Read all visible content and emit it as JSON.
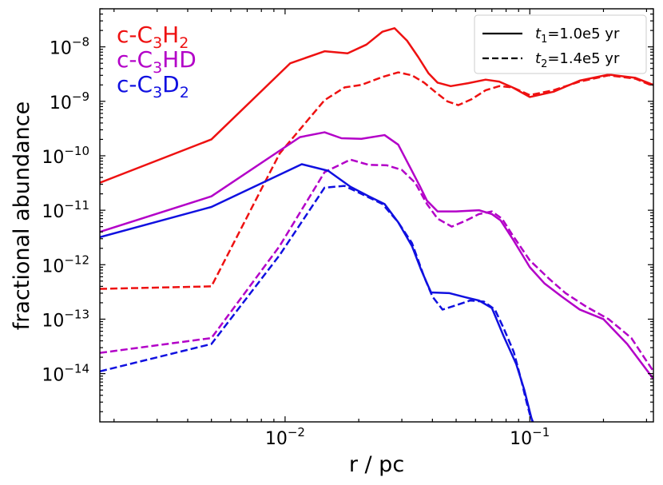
{
  "chart_data": {
    "type": "line",
    "xlabel": "r / pc",
    "ylabel": "fractional abundance",
    "xscale": "log",
    "yscale": "log",
    "xlim": [
      0.00175,
      0.32
    ],
    "ylim": [
      1.3e-15,
      5e-08
    ],
    "x_ticks": [
      {
        "value": 0.01,
        "base": "10",
        "exp": "−2"
      },
      {
        "value": 0.1,
        "base": "10",
        "exp": "−1"
      }
    ],
    "y_ticks": [
      {
        "value": 1e-14,
        "base": "10",
        "exp": "−14"
      },
      {
        "value": 1e-13,
        "base": "10",
        "exp": "−13"
      },
      {
        "value": 1e-12,
        "base": "10",
        "exp": "−12"
      },
      {
        "value": 1e-11,
        "base": "10",
        "exp": "−11"
      },
      {
        "value": 1e-10,
        "base": "10",
        "exp": "−10"
      },
      {
        "value": 1e-09,
        "base": "10",
        "exp": "−9"
      },
      {
        "value": 1e-08,
        "base": "10",
        "exp": "−8"
      }
    ],
    "species_labels": [
      {
        "prefix": "c-C",
        "sub1": "3",
        "mid": "H",
        "sub2": "2",
        "color": "#ee1111"
      },
      {
        "prefix": "c-C",
        "sub1": "3",
        "mid": "HD",
        "sub2": "",
        "color": "#b300c8"
      },
      {
        "prefix": "c-C",
        "sub1": "3",
        "mid": "D",
        "sub2": "2",
        "color": "#1010e0"
      }
    ],
    "legend": {
      "position": "top-right",
      "entries": [
        {
          "var": "t",
          "sub": "1",
          "text": "=1.0e5 yr",
          "dash": "solid"
        },
        {
          "var": "t",
          "sub": "2",
          "text": "=1.4e5 yr",
          "dash": "dashed"
        }
      ]
    },
    "series": [
      {
        "name": "c-C3H2 t1",
        "color": "#ee1111",
        "dash": "solid",
        "x": [
          0.00175,
          0.005,
          0.0105,
          0.0145,
          0.018,
          0.0215,
          0.025,
          0.028,
          0.0315,
          0.035,
          0.0385,
          0.042,
          0.0475,
          0.056,
          0.066,
          0.075,
          0.085,
          0.1,
          0.125,
          0.16,
          0.21,
          0.27,
          0.32
        ],
        "y": [
          3.2e-11,
          2e-10,
          5e-09,
          8.3e-09,
          7.6e-09,
          1.1e-08,
          1.9e-08,
          2.2e-08,
          1.3e-08,
          6.5e-09,
          3.3e-09,
          2.2e-09,
          1.9e-09,
          2.15e-09,
          2.5e-09,
          2.3e-09,
          1.8e-09,
          1.2e-09,
          1.5e-09,
          2.4e-09,
          3.1e-09,
          2.7e-09,
          2e-09
        ]
      },
      {
        "name": "c-C3H2 t2",
        "color": "#ee1111",
        "dash": "dashed",
        "x": [
          0.00175,
          0.005,
          0.0095,
          0.0145,
          0.0175,
          0.0205,
          0.025,
          0.029,
          0.033,
          0.037,
          0.041,
          0.046,
          0.051,
          0.058,
          0.066,
          0.075,
          0.085,
          0.1,
          0.125,
          0.16,
          0.21,
          0.27,
          0.32
        ],
        "y": [
          3.6e-13,
          4e-13,
          1.1e-10,
          1.05e-09,
          1.8e-09,
          2e-09,
          2.8e-09,
          3.4e-09,
          3e-09,
          2.2e-09,
          1.5e-09,
          1e-09,
          8.5e-10,
          1.1e-09,
          1.6e-09,
          1.9e-09,
          1.8e-09,
          1.3e-09,
          1.6e-09,
          2.3e-09,
          3e-09,
          2.6e-09,
          1.9e-09
        ]
      },
      {
        "name": "c-C3HD t1",
        "color": "#b300c8",
        "dash": "solid",
        "x": [
          0.00175,
          0.005,
          0.0115,
          0.0145,
          0.017,
          0.0205,
          0.0255,
          0.029,
          0.0325,
          0.0355,
          0.038,
          0.042,
          0.05,
          0.062,
          0.07,
          0.076,
          0.085,
          0.1,
          0.115,
          0.135,
          0.16,
          0.2,
          0.25,
          0.32
        ],
        "y": [
          4e-12,
          1.8e-11,
          2.2e-10,
          2.7e-10,
          2.1e-10,
          2.05e-10,
          2.4e-10,
          1.6e-10,
          6e-11,
          2.8e-11,
          1.5e-11,
          9.5e-12,
          9.5e-12,
          1e-11,
          8.5e-12,
          6.5e-12,
          3e-12,
          9e-13,
          4.5e-13,
          2.6e-13,
          1.5e-13,
          1e-13,
          3.5e-14,
          8e-15
        ]
      },
      {
        "name": "c-C3HD t2",
        "color": "#b300c8",
        "dash": "dashed",
        "x": [
          0.00175,
          0.005,
          0.0095,
          0.0145,
          0.0185,
          0.022,
          0.026,
          0.03,
          0.034,
          0.038,
          0.042,
          0.048,
          0.055,
          0.062,
          0.07,
          0.077,
          0.085,
          0.1,
          0.12,
          0.14,
          0.17,
          0.21,
          0.26,
          0.32
        ],
        "y": [
          2.4e-14,
          4.5e-14,
          2.2e-12,
          5e-11,
          8.5e-11,
          6.8e-11,
          6.7e-11,
          5.5e-11,
          3.2e-11,
          1.3e-11,
          7e-12,
          5e-12,
          6.5e-12,
          8.5e-12,
          9.5e-12,
          7e-12,
          3.5e-12,
          1.2e-12,
          5.5e-13,
          3e-13,
          1.7e-13,
          1e-13,
          4.5e-14,
          1.1e-14
        ]
      },
      {
        "name": "c-C3D2 t1",
        "color": "#1010e0",
        "dash": "solid",
        "x": [
          0.00175,
          0.005,
          0.0117,
          0.015,
          0.0185,
          0.022,
          0.0255,
          0.029,
          0.033,
          0.036,
          0.0385,
          0.0395,
          0.047,
          0.055,
          0.062,
          0.07,
          0.078,
          0.088,
          0.095,
          0.1,
          0.1025
        ],
        "y": [
          3.2e-12,
          1.15e-11,
          7e-11,
          5.3e-11,
          2.7e-11,
          1.8e-11,
          1.3e-11,
          6e-12,
          2.2e-12,
          8e-13,
          4e-13,
          3.1e-13,
          3e-13,
          2.5e-13,
          2.2e-13,
          1.6e-13,
          5e-14,
          1.5e-14,
          5e-15,
          2e-15,
          1.3e-15
        ]
      },
      {
        "name": "c-C3D2 t2",
        "color": "#1010e0",
        "dash": "dashed",
        "x": [
          0.00175,
          0.005,
          0.0095,
          0.0145,
          0.0175,
          0.0205,
          0.025,
          0.029,
          0.033,
          0.037,
          0.04,
          0.044,
          0.05,
          0.057,
          0.065,
          0.072,
          0.078,
          0.086,
          0.092,
          0.097,
          0.1,
          0.103
        ],
        "y": [
          1.1e-14,
          3.5e-14,
          1.5e-12,
          2.6e-11,
          2.8e-11,
          2e-11,
          1.3e-11,
          6e-12,
          2.5e-12,
          6e-13,
          2.6e-13,
          1.5e-13,
          1.8e-13,
          2.2e-13,
          2.1e-13,
          1.5e-13,
          7e-14,
          2.5e-14,
          8e-15,
          3e-15,
          1.8e-15,
          1.3e-15
        ]
      }
    ]
  }
}
